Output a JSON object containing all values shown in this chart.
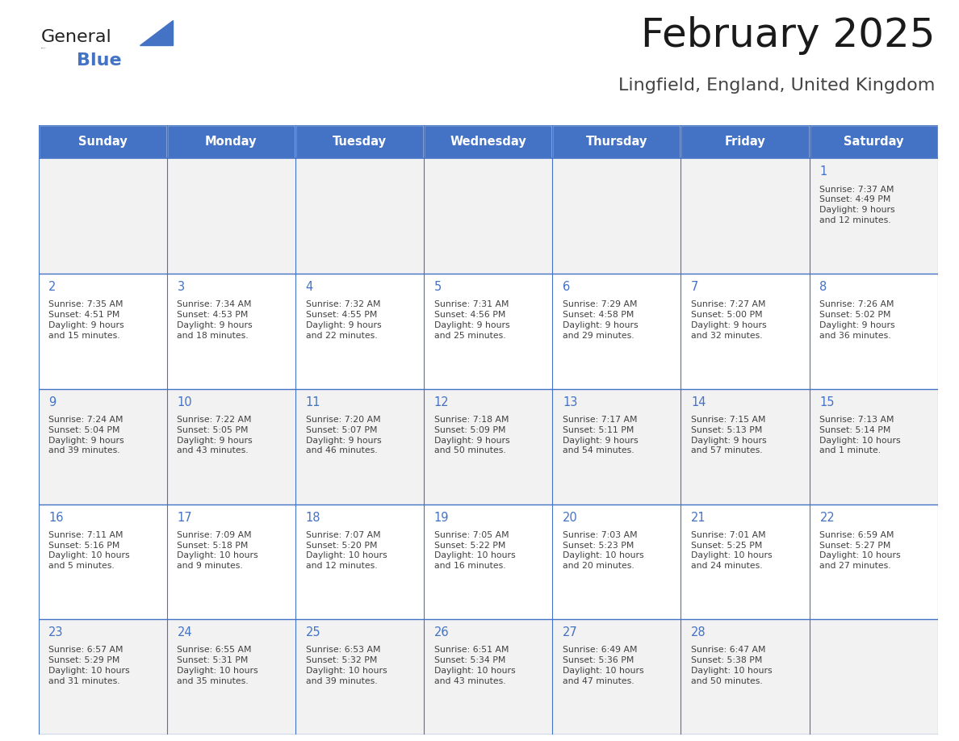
{
  "title": "February 2025",
  "subtitle": "Lingfield, England, United Kingdom",
  "days_of_week": [
    "Sunday",
    "Monday",
    "Tuesday",
    "Wednesday",
    "Thursday",
    "Friday",
    "Saturday"
  ],
  "header_bg": "#4472C4",
  "header_text_color": "#FFFFFF",
  "cell_bg_odd": "#F2F2F2",
  "cell_bg_even": "#FFFFFF",
  "border_color": "#4472C4",
  "separator_color": "#4472C4",
  "day_number_color": "#4472C4",
  "text_color": "#404040",
  "title_color": "#1a1a1a",
  "subtitle_color": "#333333",
  "logo_general_color": "#1a1a1a",
  "logo_blue_color": "#4472C4",
  "logo_triangle_color": "#4472C4",
  "calendar_data": [
    [
      null,
      null,
      null,
      null,
      null,
      null,
      {
        "day": 1,
        "sunrise": "7:37 AM",
        "sunset": "4:49 PM",
        "daylight": "9 hours\nand 12 minutes."
      }
    ],
    [
      {
        "day": 2,
        "sunrise": "7:35 AM",
        "sunset": "4:51 PM",
        "daylight": "9 hours\nand 15 minutes."
      },
      {
        "day": 3,
        "sunrise": "7:34 AM",
        "sunset": "4:53 PM",
        "daylight": "9 hours\nand 18 minutes."
      },
      {
        "day": 4,
        "sunrise": "7:32 AM",
        "sunset": "4:55 PM",
        "daylight": "9 hours\nand 22 minutes."
      },
      {
        "day": 5,
        "sunrise": "7:31 AM",
        "sunset": "4:56 PM",
        "daylight": "9 hours\nand 25 minutes."
      },
      {
        "day": 6,
        "sunrise": "7:29 AM",
        "sunset": "4:58 PM",
        "daylight": "9 hours\nand 29 minutes."
      },
      {
        "day": 7,
        "sunrise": "7:27 AM",
        "sunset": "5:00 PM",
        "daylight": "9 hours\nand 32 minutes."
      },
      {
        "day": 8,
        "sunrise": "7:26 AM",
        "sunset": "5:02 PM",
        "daylight": "9 hours\nand 36 minutes."
      }
    ],
    [
      {
        "day": 9,
        "sunrise": "7:24 AM",
        "sunset": "5:04 PM",
        "daylight": "9 hours\nand 39 minutes."
      },
      {
        "day": 10,
        "sunrise": "7:22 AM",
        "sunset": "5:05 PM",
        "daylight": "9 hours\nand 43 minutes."
      },
      {
        "day": 11,
        "sunrise": "7:20 AM",
        "sunset": "5:07 PM",
        "daylight": "9 hours\nand 46 minutes."
      },
      {
        "day": 12,
        "sunrise": "7:18 AM",
        "sunset": "5:09 PM",
        "daylight": "9 hours\nand 50 minutes."
      },
      {
        "day": 13,
        "sunrise": "7:17 AM",
        "sunset": "5:11 PM",
        "daylight": "9 hours\nand 54 minutes."
      },
      {
        "day": 14,
        "sunrise": "7:15 AM",
        "sunset": "5:13 PM",
        "daylight": "9 hours\nand 57 minutes."
      },
      {
        "day": 15,
        "sunrise": "7:13 AM",
        "sunset": "5:14 PM",
        "daylight": "10 hours\nand 1 minute."
      }
    ],
    [
      {
        "day": 16,
        "sunrise": "7:11 AM",
        "sunset": "5:16 PM",
        "daylight": "10 hours\nand 5 minutes."
      },
      {
        "day": 17,
        "sunrise": "7:09 AM",
        "sunset": "5:18 PM",
        "daylight": "10 hours\nand 9 minutes."
      },
      {
        "day": 18,
        "sunrise": "7:07 AM",
        "sunset": "5:20 PM",
        "daylight": "10 hours\nand 12 minutes."
      },
      {
        "day": 19,
        "sunrise": "7:05 AM",
        "sunset": "5:22 PM",
        "daylight": "10 hours\nand 16 minutes."
      },
      {
        "day": 20,
        "sunrise": "7:03 AM",
        "sunset": "5:23 PM",
        "daylight": "10 hours\nand 20 minutes."
      },
      {
        "day": 21,
        "sunrise": "7:01 AM",
        "sunset": "5:25 PM",
        "daylight": "10 hours\nand 24 minutes."
      },
      {
        "day": 22,
        "sunrise": "6:59 AM",
        "sunset": "5:27 PM",
        "daylight": "10 hours\nand 27 minutes."
      }
    ],
    [
      {
        "day": 23,
        "sunrise": "6:57 AM",
        "sunset": "5:29 PM",
        "daylight": "10 hours\nand 31 minutes."
      },
      {
        "day": 24,
        "sunrise": "6:55 AM",
        "sunset": "5:31 PM",
        "daylight": "10 hours\nand 35 minutes."
      },
      {
        "day": 25,
        "sunrise": "6:53 AM",
        "sunset": "5:32 PM",
        "daylight": "10 hours\nand 39 minutes."
      },
      {
        "day": 26,
        "sunrise": "6:51 AM",
        "sunset": "5:34 PM",
        "daylight": "10 hours\nand 43 minutes."
      },
      {
        "day": 27,
        "sunrise": "6:49 AM",
        "sunset": "5:36 PM",
        "daylight": "10 hours\nand 47 minutes."
      },
      {
        "day": 28,
        "sunrise": "6:47 AM",
        "sunset": "5:38 PM",
        "daylight": "10 hours\nand 50 minutes."
      },
      null
    ]
  ]
}
